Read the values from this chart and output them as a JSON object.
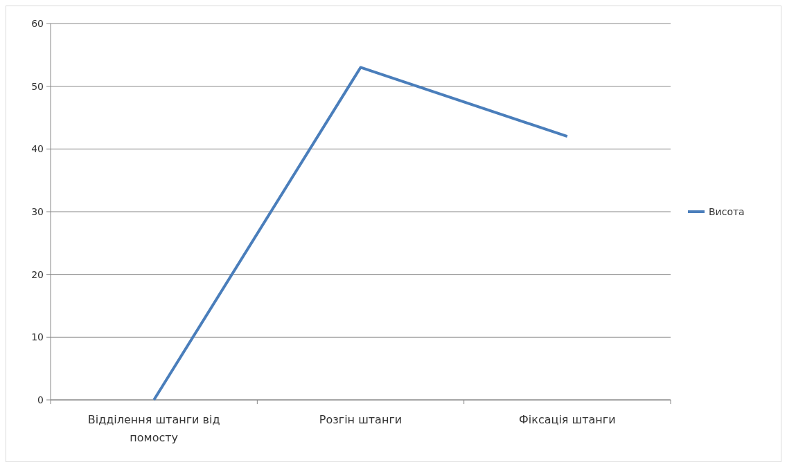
{
  "chart_data": {
    "type": "line",
    "categories": [
      "Відділення штанги від помосту",
      "Розгін штанги",
      "Фіксація штанги"
    ],
    "series": [
      {
        "name": "Висота",
        "color": "#4a7ebb",
        "values": [
          0,
          53,
          42
        ]
      }
    ],
    "ylim": [
      0,
      60
    ],
    "yticks": [
      0,
      10,
      20,
      30,
      40,
      50,
      60
    ],
    "grid": "y",
    "legend": "right",
    "marker": "none",
    "line_style": "solid"
  }
}
